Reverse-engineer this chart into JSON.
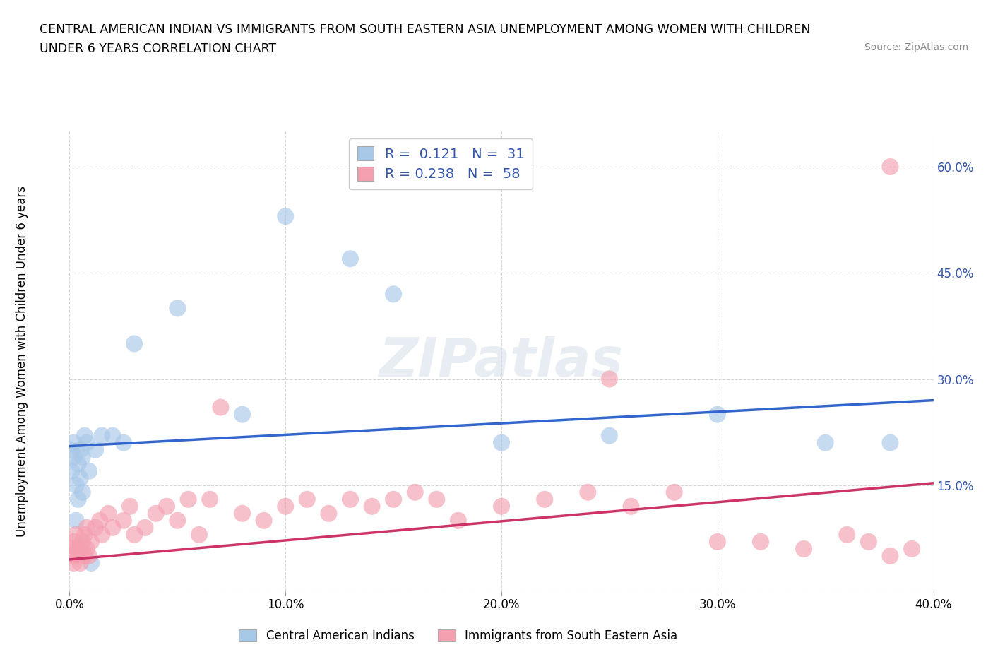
{
  "title_line1": "CENTRAL AMERICAN INDIAN VS IMMIGRANTS FROM SOUTH EASTERN ASIA UNEMPLOYMENT AMONG WOMEN WITH CHILDREN",
  "title_line2": "UNDER 6 YEARS CORRELATION CHART",
  "source": "Source: ZipAtlas.com",
  "ylabel": "Unemployment Among Women with Children Under 6 years",
  "xmin": 0.0,
  "xmax": 0.4,
  "ymin": 0.0,
  "ymax": 0.65,
  "xticks": [
    0.0,
    0.1,
    0.2,
    0.3,
    0.4
  ],
  "xticklabels": [
    "0.0%",
    "10.0%",
    "20.0%",
    "30.0%",
    "40.0%"
  ],
  "yticks": [
    0.0,
    0.15,
    0.3,
    0.45,
    0.6
  ],
  "yticklabels": [
    "",
    "15.0%",
    "30.0%",
    "45.0%",
    "60.0%"
  ],
  "blue_color": "#a8c8e8",
  "blue_line_color": "#3366cc",
  "pink_color": "#f4a0b0",
  "pink_line_color": "#cc3366",
  "legend_R1": "0.121",
  "legend_N1": "31",
  "legend_R2": "0.238",
  "legend_N2": "58",
  "legend_text_color": "#3355aa",
  "label1": "Central American Indians",
  "label2": "Immigrants from South Eastern Asia",
  "watermark": "ZIPatlas",
  "blue_x": [
    0.001,
    0.001,
    0.002,
    0.002,
    0.003,
    0.003,
    0.004,
    0.004,
    0.005,
    0.005,
    0.006,
    0.006,
    0.007,
    0.008,
    0.009,
    0.01,
    0.012,
    0.015,
    0.02,
    0.025,
    0.03,
    0.05,
    0.08,
    0.1,
    0.13,
    0.15,
    0.2,
    0.25,
    0.3,
    0.35,
    0.38
  ],
  "blue_y": [
    0.2,
    0.17,
    0.19,
    0.21,
    0.1,
    0.15,
    0.18,
    0.13,
    0.16,
    0.2,
    0.14,
    0.19,
    0.22,
    0.21,
    0.17,
    0.04,
    0.2,
    0.22,
    0.22,
    0.21,
    0.35,
    0.4,
    0.25,
    0.53,
    0.47,
    0.42,
    0.21,
    0.22,
    0.25,
    0.21,
    0.21
  ],
  "pink_x": [
    0.001,
    0.001,
    0.002,
    0.002,
    0.003,
    0.003,
    0.004,
    0.005,
    0.005,
    0.006,
    0.006,
    0.007,
    0.007,
    0.008,
    0.008,
    0.009,
    0.01,
    0.012,
    0.014,
    0.015,
    0.018,
    0.02,
    0.025,
    0.028,
    0.03,
    0.035,
    0.04,
    0.045,
    0.05,
    0.055,
    0.06,
    0.065,
    0.07,
    0.08,
    0.09,
    0.1,
    0.11,
    0.12,
    0.13,
    0.14,
    0.15,
    0.16,
    0.17,
    0.18,
    0.2,
    0.22,
    0.24,
    0.26,
    0.28,
    0.3,
    0.32,
    0.34,
    0.36,
    0.37,
    0.38,
    0.39,
    0.25,
    0.38
  ],
  "pink_y": [
    0.05,
    0.06,
    0.04,
    0.07,
    0.05,
    0.08,
    0.06,
    0.04,
    0.06,
    0.05,
    0.07,
    0.05,
    0.08,
    0.06,
    0.09,
    0.05,
    0.07,
    0.09,
    0.1,
    0.08,
    0.11,
    0.09,
    0.1,
    0.12,
    0.08,
    0.09,
    0.11,
    0.12,
    0.1,
    0.13,
    0.08,
    0.13,
    0.26,
    0.11,
    0.1,
    0.12,
    0.13,
    0.11,
    0.13,
    0.12,
    0.13,
    0.14,
    0.13,
    0.1,
    0.12,
    0.13,
    0.14,
    0.12,
    0.14,
    0.07,
    0.07,
    0.06,
    0.08,
    0.07,
    0.05,
    0.06,
    0.3,
    0.6
  ],
  "blue_line_x0": 0.0,
  "blue_line_x1": 0.4,
  "blue_line_y0": 0.205,
  "blue_line_y1": 0.27,
  "pink_line_x0": 0.0,
  "pink_line_x1": 0.4,
  "pink_line_y0": 0.045,
  "pink_line_y1": 0.153,
  "background_color": "#ffffff",
  "grid_color": "#cccccc"
}
